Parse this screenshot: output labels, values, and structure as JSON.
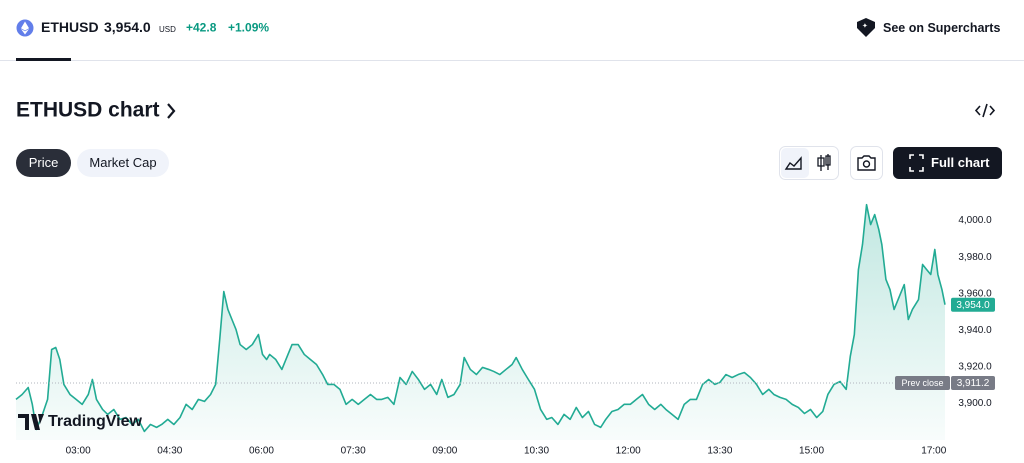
{
  "header": {
    "symbol": "ETHUSD",
    "price": "3,954.0",
    "currency": "USD",
    "change": "+42.8",
    "change_percent": "+1.09%",
    "link": "See on Supercharts"
  },
  "title": "ETHUSD chart",
  "tabs": [
    "Price",
    "Market Cap"
  ],
  "full_chart": "Full chart",
  "watermark": "TradingView",
  "chart_data": {
    "type": "area",
    "color": "#22ab94",
    "grid": false,
    "x": [
      119,
      125,
      131,
      135,
      139,
      145,
      150,
      154,
      158,
      162,
      166,
      172,
      178,
      184,
      190,
      194,
      198,
      204,
      209,
      215,
      221,
      227,
      233,
      239,
      245,
      251,
      257,
      262,
      268,
      274,
      280,
      286,
      292,
      298,
      304,
      310,
      315,
      319,
      323,
      327,
      331,
      335,
      339,
      345,
      351,
      357,
      361,
      365,
      368,
      374,
      380,
      386,
      390,
      396,
      402,
      408,
      414,
      420,
      425,
      431,
      437,
      443,
      449,
      455,
      461,
      467,
      473,
      478,
      484,
      490,
      496,
      502,
      508,
      514,
      520,
      526,
      532,
      537,
      543,
      549,
      555,
      559,
      565,
      571,
      577,
      583,
      588,
      594,
      600,
      606,
      610,
      616,
      622,
      628,
      634,
      640,
      645,
      651,
      657,
      663,
      669,
      675,
      681,
      687,
      693,
      698,
      704,
      710,
      716,
      722,
      728,
      734,
      740,
      746,
      752,
      757,
      763,
      769,
      775,
      781,
      787,
      793,
      799,
      805,
      810,
      816,
      822,
      828,
      834,
      840,
      846,
      852,
      858,
      863,
      869,
      875,
      881,
      887,
      893,
      899,
      905,
      911,
      916,
      922,
      928,
      934,
      938,
      942,
      946,
      950,
      954,
      958,
      962,
      966,
      969,
      973,
      977,
      981,
      987,
      991,
      995,
      999,
      1005,
      1009,
      1013,
      1017,
      1021,
      1024,
      1028,
      1031
    ],
    "values": [
      3902.2,
      3904.9,
      3908.7,
      3899.5,
      3885.8,
      3894.0,
      3902.2,
      3929.5,
      3930.6,
      3924.0,
      3910.4,
      3904.9,
      3902.2,
      3899.5,
      3904.9,
      3913.1,
      3902.2,
      3896.7,
      3894.0,
      3896.7,
      3891.3,
      3892.3,
      3888.5,
      3891.3,
      3884.7,
      3888.5,
      3886.9,
      3888.5,
      3891.3,
      3888.5,
      3892.3,
      3899.5,
      3896.7,
      3902.2,
      3901.1,
      3904.9,
      3910.4,
      3935.0,
      3961.2,
      3951.4,
      3945.9,
      3940.4,
      3932.2,
      3929.5,
      3932.2,
      3937.7,
      3926.8,
      3924.0,
      3926.8,
      3924.0,
      3918.6,
      3926.8,
      3932.2,
      3932.2,
      3926.8,
      3924.0,
      3921.3,
      3915.8,
      3910.4,
      3910.4,
      3907.7,
      3899.5,
      3902.2,
      3899.5,
      3902.2,
      3904.9,
      3902.2,
      3902.2,
      3903.3,
      3899.5,
      3914.2,
      3910.4,
      3917.5,
      3913.1,
      3907.7,
      3910.4,
      3904.9,
      3913.1,
      3903.3,
      3904.9,
      3910.4,
      3925.1,
      3918.6,
      3915.8,
      3919.7,
      3918.6,
      3917.5,
      3915.8,
      3918.6,
      3921.3,
      3925.1,
      3918.6,
      3913.1,
      3907.7,
      3896.7,
      3891.3,
      3892.3,
      3888.5,
      3894.0,
      3891.3,
      3897.8,
      3892.3,
      3895.6,
      3888.5,
      3886.9,
      3891.3,
      3895.6,
      3896.7,
      3899.5,
      3899.5,
      3902.2,
      3904.9,
      3899.5,
      3896.7,
      3899.5,
      3896.7,
      3894.0,
      3891.3,
      3899.5,
      3902.2,
      3902.2,
      3910.4,
      3913.1,
      3910.4,
      3911.5,
      3915.8,
      3914.2,
      3915.8,
      3916.9,
      3914.2,
      3910.4,
      3904.9,
      3907.7,
      3904.9,
      3903.3,
      3902.2,
      3899.5,
      3897.8,
      3894.5,
      3896.7,
      3892.3,
      3895.6,
      3904.9,
      3910.4,
      3912.0,
      3907.7,
      3925.7,
      3937.7,
      3973.2,
      3986.9,
      4008.7,
      3997.8,
      4003.3,
      3995.1,
      3986.9,
      3967.8,
      3962.3,
      3951.4,
      3959.6,
      3965.0,
      3945.9,
      3951.4,
      3956.8,
      3976.0,
      3973.2,
      3970.5,
      3984.2,
      3970.5,
      3962.3,
      3954.0
    ],
    "xlim": [
      119,
      1031
    ],
    "xticks": [
      {
        "value": 180,
        "label": "03:00"
      },
      {
        "value": 270,
        "label": "04:30"
      },
      {
        "value": 360,
        "label": "06:00"
      },
      {
        "value": 450,
        "label": "07:30"
      },
      {
        "value": 540,
        "label": "09:00"
      },
      {
        "value": 630,
        "label": "10:30"
      },
      {
        "value": 720,
        "label": "12:00"
      },
      {
        "value": 810,
        "label": "13:30"
      },
      {
        "value": 900,
        "label": "15:00"
      },
      {
        "value": 1020,
        "label": "17:00"
      }
    ],
    "ylim": [
      3880,
      4014
    ],
    "yticks": [
      {
        "value": 3900,
        "label": "3,900.0"
      },
      {
        "value": 3920,
        "label": "3,920.0"
      },
      {
        "value": 3940,
        "label": "3,940.0"
      },
      {
        "value": 3960,
        "label": "3,960.0"
      },
      {
        "value": 3980,
        "label": "3,980.0"
      },
      {
        "value": 4000,
        "label": "4,000.0"
      }
    ],
    "reference_line": {
      "name": "Prev close",
      "value": 3911.2,
      "value_label": "3,911.2"
    }
  }
}
